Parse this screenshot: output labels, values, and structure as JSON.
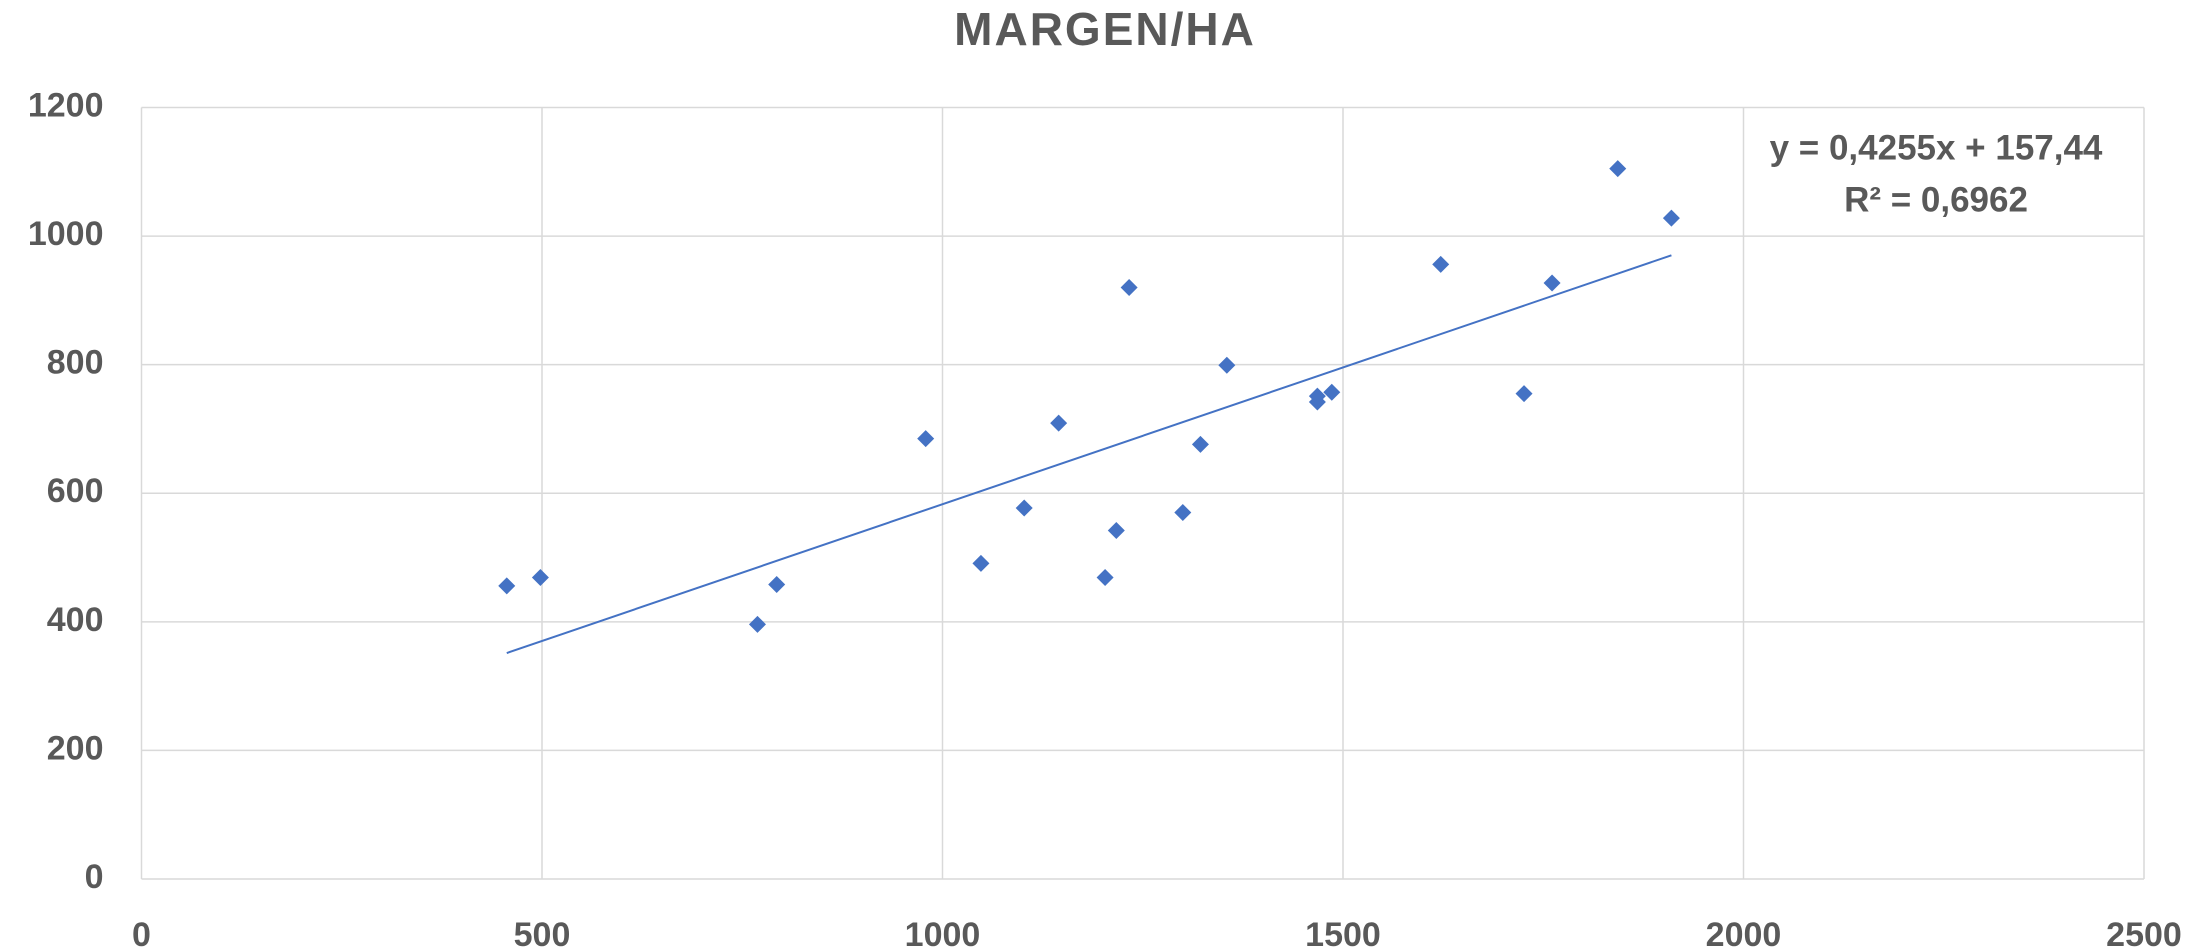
{
  "chart_data": {
    "type": "scatter",
    "title": "MARGEN/HA",
    "x": [
      456,
      498,
      769,
      793,
      979,
      1048,
      1102,
      1145,
      1203,
      1217,
      1233,
      1300,
      1322,
      1355,
      1468,
      1468,
      1486,
      1622,
      1726,
      1761,
      1843,
      1910
    ],
    "values": [
      456,
      469,
      396,
      458,
      685,
      491,
      577,
      709,
      469,
      542,
      920,
      570,
      676,
      799,
      751,
      742,
      757,
      956,
      755,
      927,
      1105,
      1028
    ],
    "color": "#4472c4",
    "xlim": [
      0,
      2500
    ],
    "xticks": [
      0,
      500,
      1000,
      1500,
      2000,
      2500
    ],
    "ylim": [
      0,
      1200
    ],
    "yticks": [
      0,
      200,
      400,
      600,
      800,
      1000,
      1200
    ],
    "grid": true,
    "trendline": {
      "slope": 0.4255,
      "intercept": 157.44,
      "color": "#4472c4"
    },
    "annotations": [
      "y = 0,4255x + 157,44",
      "R² = 0,6962"
    ]
  }
}
